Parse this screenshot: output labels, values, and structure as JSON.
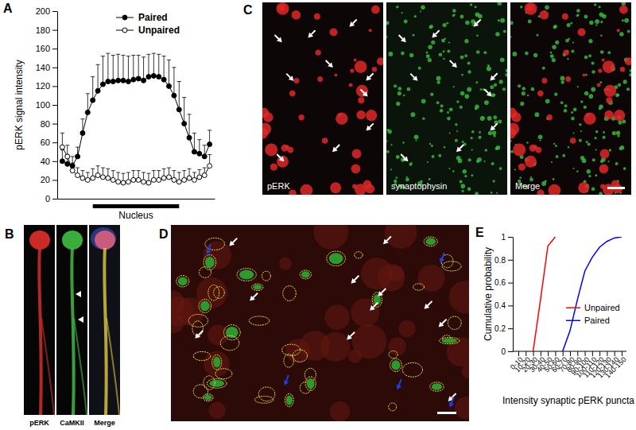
{
  "chart_data": [
    {
      "type": "line",
      "y_label": "pERK signal intensity",
      "x": [
        1,
        2,
        3,
        4,
        5,
        6,
        7,
        8,
        9,
        10,
        11,
        12,
        13,
        14,
        15,
        16,
        17,
        18,
        19,
        20,
        21,
        22,
        23,
        24,
        25,
        26,
        27,
        28,
        29,
        30
      ],
      "xlim": [
        0,
        31
      ],
      "xticks": [],
      "ylim": [
        0,
        200
      ],
      "yticks": [
        0,
        20,
        40,
        60,
        80,
        100,
        120,
        140,
        160,
        180,
        200
      ],
      "tick_labels": "y",
      "legend": "top",
      "series": [
        {
          "name": "Paired",
          "color": "#000000",
          "marker": "filled_circle",
          "values": [
            40,
            37,
            35,
            45,
            70,
            92,
            105,
            115,
            122,
            125,
            125,
            126,
            126,
            125,
            127,
            128,
            126,
            130,
            131,
            130,
            127,
            120,
            110,
            95,
            80,
            65,
            50,
            48,
            45,
            58
          ],
          "errors": [
            12,
            10,
            10,
            10,
            15,
            20,
            25,
            28,
            30,
            30,
            28,
            28,
            27,
            27,
            26,
            25,
            25,
            24,
            24,
            24,
            25,
            28,
            30,
            30,
            28,
            25,
            20,
            15,
            12,
            15
          ]
        },
        {
          "name": "Unpaired",
          "color": "#000000",
          "marker": "open_circle",
          "values": [
            55,
            45,
            30,
            25,
            22,
            20,
            22,
            25,
            23,
            22,
            20,
            18,
            17,
            18,
            20,
            20,
            18,
            17,
            20,
            20,
            22,
            23,
            20,
            18,
            20,
            22,
            20,
            23,
            25,
            35
          ],
          "errors": [
            15,
            12,
            8,
            8,
            8,
            8,
            10,
            10,
            10,
            10,
            10,
            10,
            10,
            10,
            10,
            10,
            10,
            10,
            10,
            10,
            10,
            10,
            10,
            10,
            10,
            10,
            8,
            8,
            8,
            12
          ]
        }
      ],
      "annotation": {
        "text": "Nucleus",
        "x_start": 7,
        "x_end": 24
      }
    },
    {
      "type": "line",
      "x_label": "Intensity synaptic pERK puncta",
      "y_label": "Cumulative probability",
      "categories": [
        "0-10",
        "10-20",
        "20-30",
        "30-40",
        "40-50",
        "50-60",
        "60-70",
        "70-80",
        "80-90",
        "90-100",
        "100-110",
        "110-120",
        "120-130",
        "130-140",
        "140-150"
      ],
      "ylim": [
        0,
        1
      ],
      "yticks": [
        0,
        0.2,
        0.4,
        0.6,
        0.8,
        1
      ],
      "legend": "right",
      "series": [
        {
          "name": "Unpaired",
          "color": "#ff0000",
          "values": [
            null,
            null,
            0,
            0.45,
            0.92,
            1,
            null,
            null,
            null,
            null,
            null,
            null,
            null,
            null,
            null
          ]
        },
        {
          "name": "Paired",
          "color": "#0000ff",
          "values": [
            null,
            null,
            null,
            null,
            null,
            null,
            0,
            0.18,
            0.45,
            0.7,
            0.82,
            0.91,
            0.96,
            0.99,
            1
          ]
        }
      ]
    }
  ],
  "panel_labels": [
    "A",
    "B",
    "C",
    "D",
    "E"
  ],
  "image_labels": {
    "B": [
      "pERK",
      "CaMKII",
      "Merge"
    ],
    "C": [
      "pERK",
      "synaptophysin",
      "Merge"
    ]
  }
}
